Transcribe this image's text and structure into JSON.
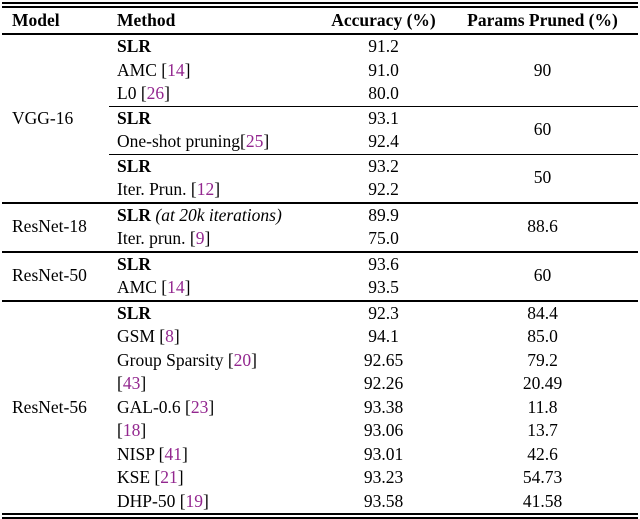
{
  "colors": {
    "citation": "#93278F",
    "text": "#000000",
    "background": "#ffffff"
  },
  "table": {
    "columns": [
      "Model",
      "Method",
      "Accuracy (%)",
      "Params Pruned (%)"
    ],
    "rows": [
      {
        "model": {
          "label": "VGG-16",
          "span": 7
        },
        "method": [
          {
            "t": "SLR",
            "s": "bold"
          }
        ],
        "acc": "91.2",
        "params": {
          "label": "90",
          "span": 3
        },
        "rule": "none"
      },
      {
        "method": [
          {
            "t": "AMC [",
            "s": "normal"
          },
          {
            "t": "14",
            "s": "cite"
          },
          {
            "t": "]",
            "s": "normal"
          }
        ],
        "acc": "91.0"
      },
      {
        "method": [
          {
            "t": "L0 [",
            "s": "normal"
          },
          {
            "t": "26",
            "s": "cite"
          },
          {
            "t": "]",
            "s": "normal"
          }
        ],
        "acc": "80.0"
      },
      {
        "method": [
          {
            "t": "SLR",
            "s": "bold"
          }
        ],
        "acc": "93.1",
        "params": {
          "label": "60",
          "span": 2
        },
        "rule": "cline"
      },
      {
        "method": [
          {
            "t": "One-shot pruning[",
            "s": "normal"
          },
          {
            "t": "25",
            "s": "cite"
          },
          {
            "t": "]",
            "s": "normal"
          }
        ],
        "acc": "92.4"
      },
      {
        "method": [
          {
            "t": "SLR",
            "s": "bold"
          }
        ],
        "acc": "93.2",
        "params": {
          "label": "50",
          "span": 2
        },
        "rule": "cline"
      },
      {
        "method": [
          {
            "t": "Iter. Prun. [",
            "s": "normal"
          },
          {
            "t": "12",
            "s": "cite"
          },
          {
            "t": "]",
            "s": "normal"
          }
        ],
        "acc": "92.2"
      },
      {
        "model": {
          "label": "ResNet-18",
          "span": 2
        },
        "method": [
          {
            "t": "SLR",
            "s": "bold"
          },
          {
            "t": " (at 20k iterations)",
            "s": "italic"
          }
        ],
        "acc": "89.9",
        "params": {
          "label": "88.6",
          "span": 2
        },
        "rule": "full"
      },
      {
        "method": [
          {
            "t": "Iter. prun. [",
            "s": "normal"
          },
          {
            "t": "9",
            "s": "cite"
          },
          {
            "t": "]",
            "s": "normal"
          }
        ],
        "acc": "75.0"
      },
      {
        "model": {
          "label": "ResNet-50",
          "span": 2
        },
        "method": [
          {
            "t": "SLR",
            "s": "bold"
          }
        ],
        "acc": "93.6",
        "params": {
          "label": "60",
          "span": 2
        },
        "rule": "full"
      },
      {
        "method": [
          {
            "t": "AMC [",
            "s": "normal"
          },
          {
            "t": "14",
            "s": "cite"
          },
          {
            "t": "]",
            "s": "normal"
          }
        ],
        "acc": "93.5"
      },
      {
        "model": {
          "label": "ResNet-56",
          "span": 9
        },
        "method": [
          {
            "t": "SLR",
            "s": "bold"
          }
        ],
        "acc": "92.3",
        "params": {
          "label": "84.4"
        },
        "rule": "full"
      },
      {
        "method": [
          {
            "t": "GSM [",
            "s": "normal"
          },
          {
            "t": "8",
            "s": "cite"
          },
          {
            "t": "]",
            "s": "normal"
          }
        ],
        "acc": "94.1",
        "params": {
          "label": "85.0"
        }
      },
      {
        "method": [
          {
            "t": "Group Sparsity [",
            "s": "normal"
          },
          {
            "t": "20",
            "s": "cite"
          },
          {
            "t": "]",
            "s": "normal"
          }
        ],
        "acc": "92.65",
        "params": {
          "label": "79.2"
        }
      },
      {
        "method": [
          {
            "t": "[",
            "s": "normal"
          },
          {
            "t": "43",
            "s": "cite"
          },
          {
            "t": "]",
            "s": "normal"
          }
        ],
        "acc": "92.26",
        "params": {
          "label": "20.49"
        }
      },
      {
        "method": [
          {
            "t": "GAL-0.6 [",
            "s": "normal"
          },
          {
            "t": "23",
            "s": "cite"
          },
          {
            "t": "]",
            "s": "normal"
          }
        ],
        "acc": "93.38",
        "params": {
          "label": "11.8"
        }
      },
      {
        "method": [
          {
            "t": "[",
            "s": "normal"
          },
          {
            "t": "18",
            "s": "cite"
          },
          {
            "t": "]",
            "s": "normal"
          }
        ],
        "acc": "93.06",
        "params": {
          "label": "13.7"
        }
      },
      {
        "method": [
          {
            "t": "NISP [",
            "s": "normal"
          },
          {
            "t": "41",
            "s": "cite"
          },
          {
            "t": "]",
            "s": "normal"
          }
        ],
        "acc": "93.01",
        "params": {
          "label": "42.6"
        }
      },
      {
        "method": [
          {
            "t": "KSE [",
            "s": "normal"
          },
          {
            "t": "21",
            "s": "cite"
          },
          {
            "t": "]",
            "s": "normal"
          }
        ],
        "acc": "93.23",
        "params": {
          "label": "54.73"
        }
      },
      {
        "method": [
          {
            "t": "DHP-50 [",
            "s": "normal"
          },
          {
            "t": "19",
            "s": "cite"
          },
          {
            "t": "]",
            "s": "normal"
          }
        ],
        "acc": "93.58",
        "params": {
          "label": "41.58"
        }
      }
    ]
  }
}
